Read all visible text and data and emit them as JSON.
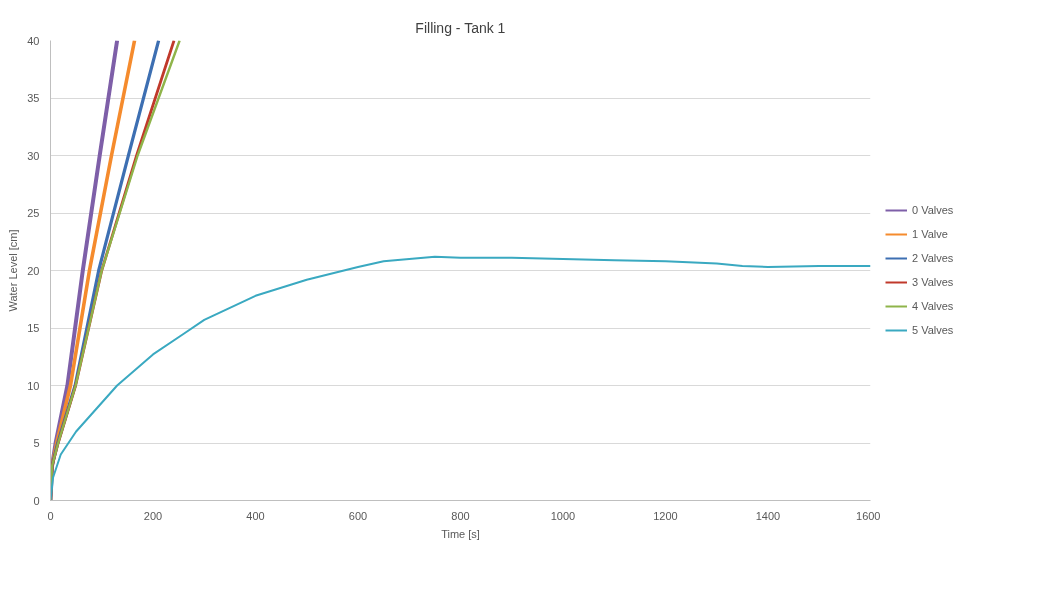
{
  "chart_data": {
    "type": "line",
    "title": "Filling - Tank 1",
    "xlabel": "Time [s]",
    "ylabel": "Water Level [cm]",
    "xlim": [
      0,
      1600
    ],
    "ylim": [
      0,
      40
    ],
    "xticks": [
      0,
      200,
      400,
      600,
      800,
      1000,
      1200,
      1400,
      1600
    ],
    "yticks": [
      0,
      5,
      10,
      15,
      20,
      25,
      30,
      35,
      40
    ],
    "grid": "y",
    "legend": "right",
    "marker": "none",
    "line_style": "solid",
    "series": [
      {
        "name": "0 Valves",
        "color": "#7e5fa8",
        "x": [
          0,
          3,
          10,
          33,
          63,
          96,
          130
        ],
        "values": [
          0,
          3,
          5,
          10,
          20,
          30,
          40
        ]
      },
      {
        "name": "1 Valve",
        "color": "#f58b2d",
        "x": [
          0,
          3,
          12,
          39,
          76,
          119,
          164
        ],
        "values": [
          0,
          3,
          5,
          10,
          20,
          30,
          40
        ]
      },
      {
        "name": "2 Valves",
        "color": "#3d6fb2",
        "x": [
          0,
          3,
          14,
          48,
          94,
          152,
          211
        ],
        "values": [
          0,
          3,
          5,
          10,
          20,
          30,
          40
        ]
      },
      {
        "name": "3 Valves",
        "color": "#c0392b",
        "x": [
          0,
          3,
          15,
          49,
          100,
          168,
          241
        ],
        "values": [
          0,
          3,
          5,
          10,
          20,
          30,
          40
        ]
      },
      {
        "name": "4 Valves",
        "color": "#8fb44a",
        "x": [
          0,
          3,
          15,
          49,
          100,
          170,
          252
        ],
        "values": [
          0,
          3,
          5,
          10,
          20,
          30,
          40
        ]
      },
      {
        "name": "5 Valves",
        "color": "#3aa9c1",
        "x": [
          0,
          5,
          20,
          50,
          100,
          130,
          200,
          260,
          300,
          400,
          500,
          600,
          650,
          700,
          750,
          800,
          900,
          1000,
          1100,
          1200,
          1300,
          1350,
          1400,
          1500,
          1600
        ],
        "values": [
          0,
          2,
          4,
          6,
          8.5,
          10,
          12.7,
          14.5,
          15.7,
          17.8,
          19.2,
          20.3,
          20.8,
          21.0,
          21.2,
          21.1,
          21.1,
          21.0,
          20.9,
          20.8,
          20.6,
          20.4,
          20.3,
          20.4,
          20.4
        ]
      }
    ]
  }
}
